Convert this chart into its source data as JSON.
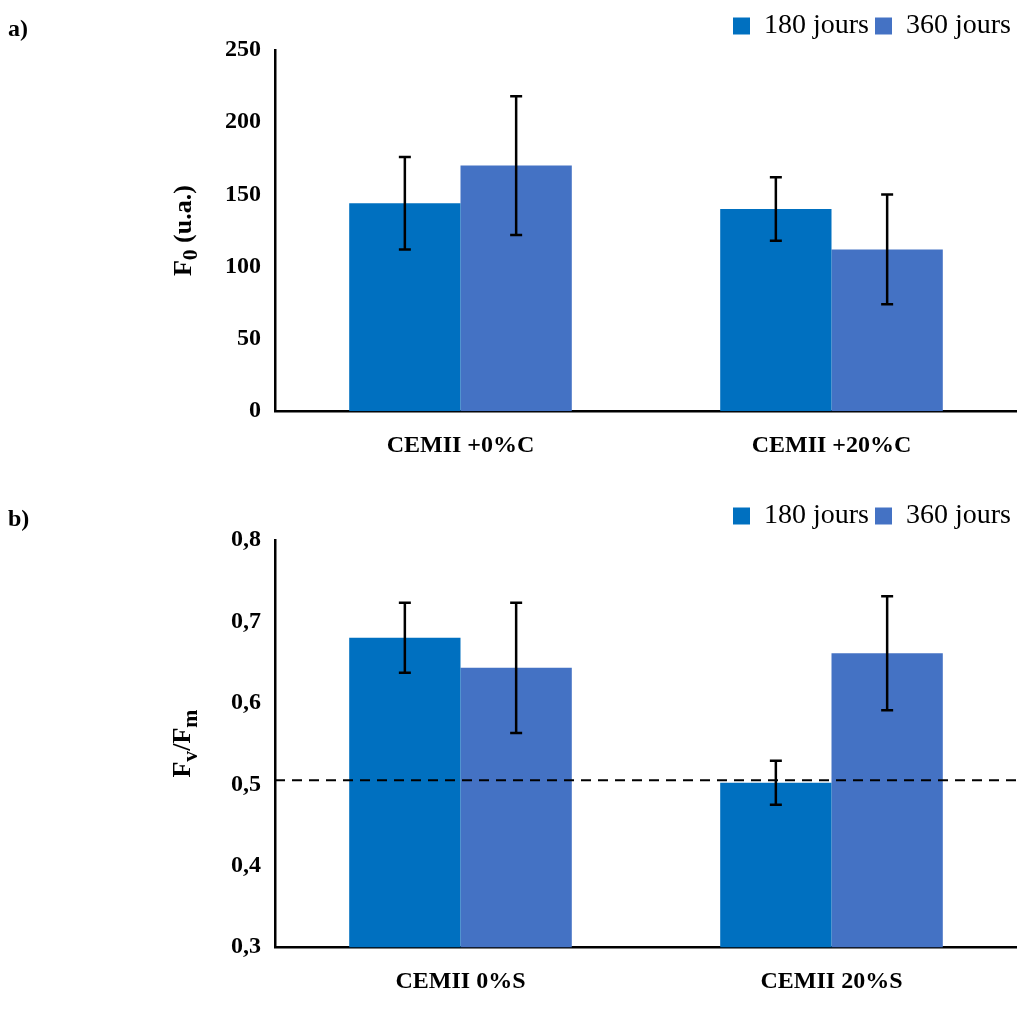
{
  "chart_data": [
    {
      "type": "bar",
      "annotations": [
        "a)"
      ],
      "ylabel": "F$_{0}$ (u.a.)",
      "categories": [
        "CEMII +0%C",
        "CEMII +20%C"
      ],
      "legend": "top right",
      "grid": false,
      "series": [
        {
          "name": "180 jours",
          "color": "#0070c0",
          "values": [
            144,
            140
          ],
          "errors": [
            32,
            22
          ]
        },
        {
          "name": "360 jours",
          "color": "#4472c4",
          "values": [
            170,
            112
          ],
          "errors": [
            48,
            38
          ]
        }
      ],
      "ylim": [
        0,
        250
      ],
      "yticks": [
        0,
        50,
        100,
        150,
        200,
        250
      ]
    },
    {
      "type": "bar",
      "annotations": [
        "b)"
      ],
      "ylabel": "F$_{v}$/F$_{m}$",
      "categories": [
        "CEMII 0%S",
        "CEMII 20%S"
      ],
      "legend": "top right",
      "grid": false,
      "series": [
        {
          "name": "180 jours",
          "color": "#0070c0",
          "values": [
            0.68,
            0.502
          ],
          "errors": [
            0.043,
            0.027
          ]
        },
        {
          "name": "360 jours",
          "color": "#4472c4",
          "values": [
            0.643,
            0.661
          ],
          "errors": [
            0.08,
            0.07
          ]
        }
      ],
      "ylim": [
        0.3,
        0.8
      ],
      "yticks": [
        {
          "value": 0.3,
          "label": "0,3"
        },
        {
          "value": 0.4,
          "label": "0,4"
        },
        {
          "value": 0.5,
          "label": "0,5"
        },
        {
          "value": 0.6,
          "label": "0,6"
        },
        {
          "value": 0.7,
          "label": "0,7"
        },
        {
          "value": 0.8,
          "label": "0,8"
        }
      ],
      "ref_lines": [
        {
          "axis": "y",
          "value": 0.505,
          "color": "#000000",
          "line_style": "dashed"
        }
      ]
    }
  ]
}
